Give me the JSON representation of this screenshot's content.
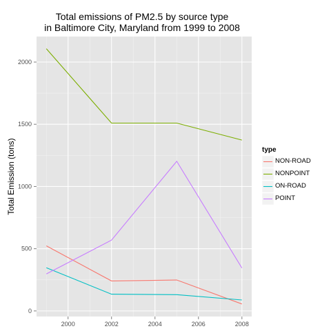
{
  "chart_data": {
    "type": "line",
    "title_lines": [
      "Total emissions of PM2.5 by source type",
      "in Baltimore City, Maryland from 1999 to 2008"
    ],
    "xlabel": "",
    "ylabel": "Total Emission (tons)",
    "x": [
      1999,
      2002,
      2005,
      2008
    ],
    "xlim": [
      1998.55,
      2008.45
    ],
    "ylim": [
      -45,
      2205
    ],
    "x_ticks": [
      2000,
      2002,
      2004,
      2006,
      2008
    ],
    "y_ticks": [
      0,
      500,
      1000,
      1500,
      2000
    ],
    "x_tick_labels": [
      "2000",
      "2002",
      "2004",
      "2006",
      "2008"
    ],
    "y_tick_labels": [
      "0",
      "500",
      "1000",
      "1500",
      "2000"
    ],
    "grid": true,
    "legend": {
      "title": "type",
      "placement": "right"
    },
    "series": [
      {
        "name": "NON-ROAD",
        "color": "#f8766d",
        "values": [
          522.94,
          240.85,
          248.93,
          55.82
        ]
      },
      {
        "name": "NONPOINT",
        "color": "#7cae00",
        "values": [
          2107.63,
          1509.5,
          1509.5,
          1373.21
        ]
      },
      {
        "name": "ON-ROAD",
        "color": "#00bfc4",
        "values": [
          346.82,
          134.31,
          130.43,
          88.28
        ]
      },
      {
        "name": "POINT",
        "color": "#c77cff",
        "values": [
          296.8,
          569.26,
          1202.49,
          344.98
        ]
      }
    ]
  }
}
